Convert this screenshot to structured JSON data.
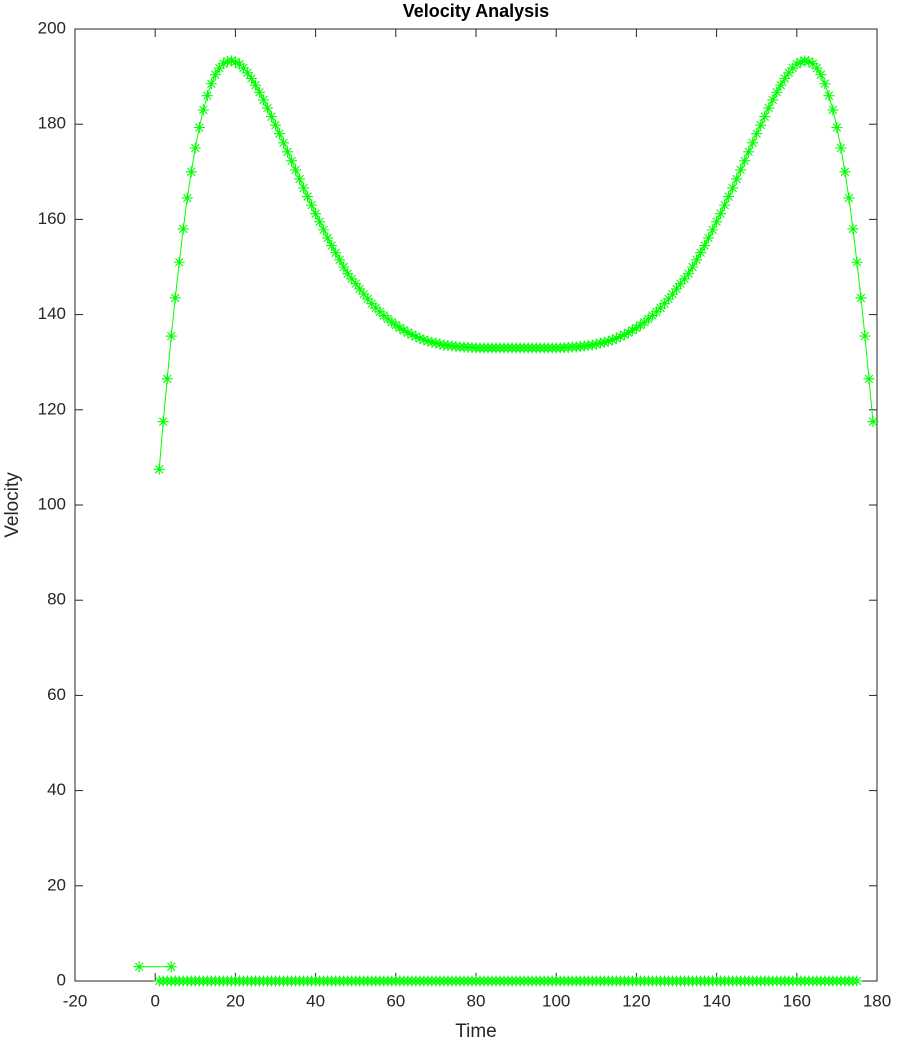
{
  "chart_data": {
    "type": "line",
    "title": "Velocity Analysis",
    "x_label": "Time",
    "y_label": "Velocity",
    "xlim": [
      -20,
      180
    ],
    "xticks": [
      -20,
      0,
      20,
      40,
      60,
      80,
      100,
      120,
      140,
      160,
      180
    ],
    "ylim": [
      0,
      200
    ],
    "yticks": [
      0,
      20,
      40,
      60,
      80,
      100,
      120,
      140,
      160,
      180,
      200
    ],
    "marker": "asterisk",
    "box": true,
    "series": [
      {
        "color": "#00ff00",
        "x": [
          1,
          2,
          3,
          4,
          5,
          6,
          7,
          8,
          9,
          10,
          11,
          12,
          13,
          14,
          15,
          16,
          17,
          18,
          19,
          20,
          21,
          22,
          23,
          24,
          25,
          26,
          27,
          28,
          29,
          30,
          31,
          32,
          33,
          34,
          35,
          36,
          37,
          38,
          39,
          40,
          41,
          42,
          43,
          44,
          45,
          46,
          47,
          48,
          49,
          50,
          51,
          52,
          53,
          54,
          55,
          56,
          57,
          58,
          59,
          60,
          61,
          62,
          63,
          64,
          65,
          66,
          67,
          68,
          69,
          70,
          71,
          72,
          73,
          74,
          75,
          76,
          77,
          78,
          79,
          80,
          81,
          82,
          83,
          84,
          85,
          86,
          87,
          88,
          89,
          90,
          91,
          92,
          93,
          94,
          95,
          96,
          97,
          98,
          99,
          100,
          101,
          102,
          103,
          104,
          105,
          106,
          107,
          108,
          109,
          110,
          111,
          112,
          113,
          114,
          115,
          116,
          117,
          118,
          119,
          120,
          121,
          122,
          123,
          124,
          125,
          126,
          127,
          128,
          129,
          130,
          131,
          132,
          133,
          134,
          135,
          136,
          137,
          138,
          139,
          140,
          141,
          142,
          143,
          144,
          145,
          146,
          147,
          148,
          149,
          150,
          151,
          152,
          153,
          154,
          155,
          156,
          157,
          158,
          159,
          160,
          161,
          162,
          163,
          164,
          165,
          166,
          167,
          168,
          169,
          170,
          171,
          172,
          173,
          174,
          175,
          176,
          177,
          178,
          179
        ],
        "values": [
          107.5,
          117.5,
          126.5,
          135.5,
          143.5,
          151,
          158,
          164.5,
          170,
          175,
          179.3,
          183,
          186,
          188.5,
          190.4,
          191.8,
          192.7,
          193.2,
          193.3,
          193.1,
          192.6,
          191.8,
          190.8,
          189.6,
          188.2,
          186.7,
          185.1,
          183.4,
          181.6,
          179.8,
          178,
          176.1,
          174.2,
          172.3,
          170.4,
          168.5,
          166.6,
          164.8,
          163,
          161.2,
          159.5,
          157.8,
          156.1,
          154.5,
          153,
          151.5,
          150,
          148.6,
          147.5,
          146.5,
          145.4,
          144.3,
          143.3,
          142.3,
          141.4,
          140.6,
          139.8,
          139.1,
          138.4,
          137.8,
          137.2,
          136.7,
          136.2,
          135.8,
          135.4,
          135,
          134.7,
          134.4,
          134.2,
          134,
          133.8,
          133.6,
          133.5,
          133.4,
          133.3,
          133.2,
          133.2,
          133.1,
          133.1,
          133,
          133,
          133,
          133,
          133,
          133,
          133,
          133,
          133,
          133,
          133,
          133,
          133,
          133,
          133,
          133,
          133,
          133,
          133,
          133,
          133,
          133,
          133.1,
          133.1,
          133.2,
          133.2,
          133.3,
          133.4,
          133.5,
          133.6,
          133.8,
          134,
          134.2,
          134.4,
          134.7,
          135,
          135.4,
          135.8,
          136.2,
          136.7,
          137.2,
          137.8,
          138.4,
          139.1,
          139.8,
          140.6,
          141.4,
          142.3,
          143.3,
          144.3,
          145.4,
          146.5,
          147.5,
          148.6,
          150,
          151.5,
          153,
          154.5,
          156.1,
          157.8,
          159.5,
          161.2,
          163,
          164.8,
          166.6,
          168.5,
          170.4,
          172.3,
          174.2,
          176.1,
          178,
          179.8,
          181.6,
          183.4,
          185.1,
          186.7,
          188.2,
          189.6,
          190.8,
          191.8,
          192.6,
          193.1,
          193.3,
          193.2,
          192.7,
          191.8,
          190.4,
          188.5,
          186,
          183,
          179.3,
          175,
          170,
          164.5,
          158,
          151,
          143.5,
          135.5,
          126.5,
          117.5
        ]
      },
      {
        "color": "#00ff00",
        "x": [
          1,
          2,
          3,
          4,
          5,
          6,
          7,
          8,
          9,
          10,
          11,
          12,
          13,
          14,
          15,
          16,
          17,
          18,
          19,
          20,
          21,
          22,
          23,
          24,
          25,
          26,
          27,
          28,
          29,
          30,
          31,
          32,
          33,
          34,
          35,
          36,
          37,
          38,
          39,
          40,
          41,
          42,
          43,
          44,
          45,
          46,
          47,
          48,
          49,
          50,
          51,
          52,
          53,
          54,
          55,
          56,
          57,
          58,
          59,
          60,
          61,
          62,
          63,
          64,
          65,
          66,
          67,
          68,
          69,
          70,
          71,
          72,
          73,
          74,
          75,
          76,
          77,
          78,
          79,
          80,
          81,
          82,
          83,
          84,
          85,
          86,
          87,
          88,
          89,
          90,
          91,
          92,
          93,
          94,
          95,
          96,
          97,
          98,
          99,
          100,
          101,
          102,
          103,
          104,
          105,
          106,
          107,
          108,
          109,
          110,
          111,
          112,
          113,
          114,
          115,
          116,
          117,
          118,
          119,
          120,
          121,
          122,
          123,
          124,
          125,
          126,
          127,
          128,
          129,
          130,
          131,
          132,
          133,
          134,
          135,
          136,
          137,
          138,
          139,
          140,
          141,
          142,
          143,
          144,
          145,
          146,
          147,
          148,
          149,
          150,
          151,
          152,
          153,
          154,
          155,
          156,
          157,
          158,
          159,
          160,
          161,
          162,
          163,
          164,
          165,
          166,
          167,
          168,
          169,
          170,
          171,
          172,
          173,
          174,
          175
        ],
        "values": [
          0,
          0,
          0,
          0,
          0,
          0,
          0,
          0,
          0,
          0,
          0,
          0,
          0,
          0,
          0,
          0,
          0,
          0,
          0,
          0,
          0,
          0,
          0,
          0,
          0,
          0,
          0,
          0,
          0,
          0,
          0,
          0,
          0,
          0,
          0,
          0,
          0,
          0,
          0,
          0,
          0,
          0,
          0,
          0,
          0,
          0,
          0,
          0,
          0,
          0,
          0,
          0,
          0,
          0,
          0,
          0,
          0,
          0,
          0,
          0,
          0,
          0,
          0,
          0,
          0,
          0,
          0,
          0,
          0,
          0,
          0,
          0,
          0,
          0,
          0,
          0,
          0,
          0,
          0,
          0,
          0,
          0,
          0,
          0,
          0,
          0,
          0,
          0,
          0,
          0,
          0,
          0,
          0,
          0,
          0,
          0,
          0,
          0,
          0,
          0,
          0,
          0,
          0,
          0,
          0,
          0,
          0,
          0,
          0,
          0,
          0,
          0,
          0,
          0,
          0,
          0,
          0,
          0,
          0,
          0,
          0,
          0,
          0,
          0,
          0,
          0,
          0,
          0,
          0,
          0,
          0,
          0,
          0,
          0,
          0,
          0,
          0,
          0,
          0,
          0,
          0,
          0,
          0,
          0,
          0,
          0,
          0,
          0,
          0,
          0,
          0,
          0,
          0,
          0,
          0,
          0,
          0,
          0,
          0,
          0,
          0,
          0,
          0,
          0,
          0,
          0,
          0,
          0,
          0,
          0,
          0,
          0,
          0,
          0,
          0
        ]
      },
      {
        "color": "#00ff00",
        "x": [
          -4,
          4
        ],
        "values": [
          3,
          3
        ]
      }
    ]
  }
}
